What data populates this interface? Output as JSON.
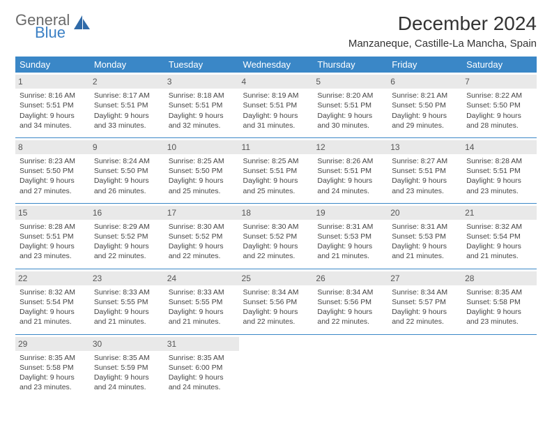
{
  "logo": {
    "word1": "General",
    "word2": "Blue",
    "icon_color": "#2f6aa8"
  },
  "title": "December 2024",
  "location": "Manzaneque, Castille-La Mancha, Spain",
  "colors": {
    "header_bg": "#3a87c7",
    "header_text": "#ffffff",
    "daynum_bg": "#e9e9e9",
    "rule": "#3a87c7",
    "body_text": "#444444"
  },
  "day_headers": [
    "Sunday",
    "Monday",
    "Tuesday",
    "Wednesday",
    "Thursday",
    "Friday",
    "Saturday"
  ],
  "weeks": [
    [
      {
        "n": "1",
        "sunrise": "8:16 AM",
        "sunset": "5:51 PM",
        "dl": "9 hours and 34 minutes."
      },
      {
        "n": "2",
        "sunrise": "8:17 AM",
        "sunset": "5:51 PM",
        "dl": "9 hours and 33 minutes."
      },
      {
        "n": "3",
        "sunrise": "8:18 AM",
        "sunset": "5:51 PM",
        "dl": "9 hours and 32 minutes."
      },
      {
        "n": "4",
        "sunrise": "8:19 AM",
        "sunset": "5:51 PM",
        "dl": "9 hours and 31 minutes."
      },
      {
        "n": "5",
        "sunrise": "8:20 AM",
        "sunset": "5:51 PM",
        "dl": "9 hours and 30 minutes."
      },
      {
        "n": "6",
        "sunrise": "8:21 AM",
        "sunset": "5:50 PM",
        "dl": "9 hours and 29 minutes."
      },
      {
        "n": "7",
        "sunrise": "8:22 AM",
        "sunset": "5:50 PM",
        "dl": "9 hours and 28 minutes."
      }
    ],
    [
      {
        "n": "8",
        "sunrise": "8:23 AM",
        "sunset": "5:50 PM",
        "dl": "9 hours and 27 minutes."
      },
      {
        "n": "9",
        "sunrise": "8:24 AM",
        "sunset": "5:50 PM",
        "dl": "9 hours and 26 minutes."
      },
      {
        "n": "10",
        "sunrise": "8:25 AM",
        "sunset": "5:50 PM",
        "dl": "9 hours and 25 minutes."
      },
      {
        "n": "11",
        "sunrise": "8:25 AM",
        "sunset": "5:51 PM",
        "dl": "9 hours and 25 minutes."
      },
      {
        "n": "12",
        "sunrise": "8:26 AM",
        "sunset": "5:51 PM",
        "dl": "9 hours and 24 minutes."
      },
      {
        "n": "13",
        "sunrise": "8:27 AM",
        "sunset": "5:51 PM",
        "dl": "9 hours and 23 minutes."
      },
      {
        "n": "14",
        "sunrise": "8:28 AM",
        "sunset": "5:51 PM",
        "dl": "9 hours and 23 minutes."
      }
    ],
    [
      {
        "n": "15",
        "sunrise": "8:28 AM",
        "sunset": "5:51 PM",
        "dl": "9 hours and 23 minutes."
      },
      {
        "n": "16",
        "sunrise": "8:29 AM",
        "sunset": "5:52 PM",
        "dl": "9 hours and 22 minutes."
      },
      {
        "n": "17",
        "sunrise": "8:30 AM",
        "sunset": "5:52 PM",
        "dl": "9 hours and 22 minutes."
      },
      {
        "n": "18",
        "sunrise": "8:30 AM",
        "sunset": "5:52 PM",
        "dl": "9 hours and 22 minutes."
      },
      {
        "n": "19",
        "sunrise": "8:31 AM",
        "sunset": "5:53 PM",
        "dl": "9 hours and 21 minutes."
      },
      {
        "n": "20",
        "sunrise": "8:31 AM",
        "sunset": "5:53 PM",
        "dl": "9 hours and 21 minutes."
      },
      {
        "n": "21",
        "sunrise": "8:32 AM",
        "sunset": "5:54 PM",
        "dl": "9 hours and 21 minutes."
      }
    ],
    [
      {
        "n": "22",
        "sunrise": "8:32 AM",
        "sunset": "5:54 PM",
        "dl": "9 hours and 21 minutes."
      },
      {
        "n": "23",
        "sunrise": "8:33 AM",
        "sunset": "5:55 PM",
        "dl": "9 hours and 21 minutes."
      },
      {
        "n": "24",
        "sunrise": "8:33 AM",
        "sunset": "5:55 PM",
        "dl": "9 hours and 21 minutes."
      },
      {
        "n": "25",
        "sunrise": "8:34 AM",
        "sunset": "5:56 PM",
        "dl": "9 hours and 22 minutes."
      },
      {
        "n": "26",
        "sunrise": "8:34 AM",
        "sunset": "5:56 PM",
        "dl": "9 hours and 22 minutes."
      },
      {
        "n": "27",
        "sunrise": "8:34 AM",
        "sunset": "5:57 PM",
        "dl": "9 hours and 22 minutes."
      },
      {
        "n": "28",
        "sunrise": "8:35 AM",
        "sunset": "5:58 PM",
        "dl": "9 hours and 23 minutes."
      }
    ],
    [
      {
        "n": "29",
        "sunrise": "8:35 AM",
        "sunset": "5:58 PM",
        "dl": "9 hours and 23 minutes."
      },
      {
        "n": "30",
        "sunrise": "8:35 AM",
        "sunset": "5:59 PM",
        "dl": "9 hours and 24 minutes."
      },
      {
        "n": "31",
        "sunrise": "8:35 AM",
        "sunset": "6:00 PM",
        "dl": "9 hours and 24 minutes."
      },
      null,
      null,
      null,
      null
    ]
  ],
  "labels": {
    "sunrise": "Sunrise:",
    "sunset": "Sunset:",
    "daylight": "Daylight:"
  }
}
